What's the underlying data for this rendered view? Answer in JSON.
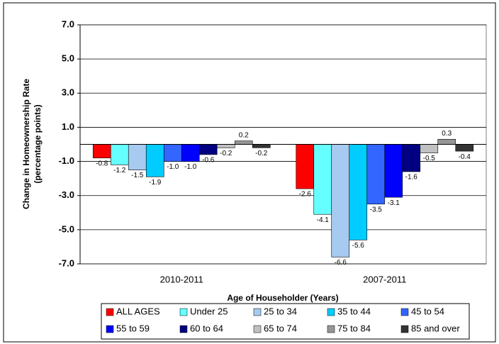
{
  "chart_data": {
    "type": "bar",
    "ylabel": [
      "Change in Homeownership Rate",
      "(percentage points)"
    ],
    "xlabel": "Age of Householder (Years)",
    "categories": [
      "2010-2011",
      "2007-2011"
    ],
    "ylim": [
      -7,
      7
    ],
    "yticks": [
      {
        "value": -7,
        "label": "-7.0"
      },
      {
        "value": -5,
        "label": "-5.0"
      },
      {
        "value": -3,
        "label": "-3.0"
      },
      {
        "value": -1,
        "label": "-1.0"
      },
      {
        "value": 1,
        "label": "1.0"
      },
      {
        "value": 3,
        "label": "3.0"
      },
      {
        "value": 5,
        "label": "5.0"
      },
      {
        "value": 7,
        "label": "7.0"
      }
    ],
    "grid": true,
    "series": [
      {
        "name": "ALL AGES",
        "color": "#ff0000",
        "values": [
          -0.8,
          -2.6
        ],
        "value_labels": [
          "-0.8",
          "-2.6"
        ]
      },
      {
        "name": "Under 25",
        "color": "#66ffff",
        "values": [
          -1.2,
          -4.1
        ],
        "value_labels": [
          "-1.2",
          "-4.1"
        ]
      },
      {
        "name": "25 to 34",
        "color": "#a6caf0",
        "values": [
          -1.5,
          -6.6
        ],
        "value_labels": [
          "-1.5",
          "-6.6"
        ]
      },
      {
        "name": "35 to 44",
        "color": "#00ccff",
        "values": [
          -1.9,
          -5.6
        ],
        "value_labels": [
          "-1.9",
          "-5.6"
        ]
      },
      {
        "name": "45 to 54",
        "color": "#3366ff",
        "values": [
          -1.0,
          -3.5
        ],
        "value_labels": [
          "-1.0",
          "-3.5"
        ]
      },
      {
        "name": "55 to 59",
        "color": "#0000ff",
        "values": [
          -1.0,
          -3.1
        ],
        "value_labels": [
          "-1.0",
          "-3.1"
        ]
      },
      {
        "name": "60 to 64",
        "color": "#000080",
        "values": [
          -0.6,
          -1.6
        ],
        "value_labels": [
          "-0.6",
          "-1.6"
        ]
      },
      {
        "name": "65 to 74",
        "color": "#c0c0c0",
        "values": [
          -0.2,
          -0.5
        ],
        "value_labels": [
          "-0.2",
          "-0.5"
        ]
      },
      {
        "name": "75 to 84",
        "color": "#969696",
        "values": [
          0.2,
          0.3
        ],
        "value_labels": [
          "0.2",
          "0.3"
        ]
      },
      {
        "name": "85 and over",
        "color": "#333333",
        "values": [
          -0.2,
          -0.4
        ],
        "value_labels": [
          "-0.2",
          "-0.4"
        ]
      }
    ]
  }
}
